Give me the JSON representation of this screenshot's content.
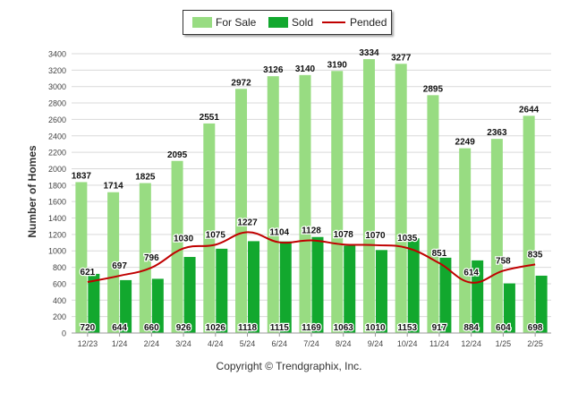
{
  "chart_data": {
    "type": "bar",
    "title": "",
    "ylabel": "Number of Homes",
    "xlabel": "",
    "ylim": [
      0,
      3400
    ],
    "ytick_step": 200,
    "grid": true,
    "legend_position": "top-center",
    "categories": [
      "12/23",
      "1/24",
      "2/24",
      "3/24",
      "4/24",
      "5/24",
      "6/24",
      "7/24",
      "8/24",
      "9/24",
      "10/24",
      "11/24",
      "12/24",
      "1/25",
      "2/25"
    ],
    "series": [
      {
        "name": "For Sale",
        "kind": "bar",
        "color": "#98dc82",
        "values": [
          1837,
          1714,
          1825,
          2095,
          2551,
          2972,
          3126,
          3140,
          3190,
          3334,
          3277,
          2895,
          2249,
          2363,
          2644
        ]
      },
      {
        "name": "Sold",
        "kind": "bar",
        "color": "#12a82e",
        "values": [
          720,
          644,
          660,
          926,
          1026,
          1118,
          1115,
          1169,
          1063,
          1010,
          1153,
          917,
          884,
          604,
          698
        ]
      },
      {
        "name": "Pended",
        "kind": "line",
        "color": "#c00000",
        "values": [
          621,
          697,
          796,
          1030,
          1075,
          1227,
          1104,
          1128,
          1078,
          1070,
          1035,
          851,
          614,
          758,
          835
        ]
      }
    ]
  },
  "footer": {
    "copyright": "Copyright © Trendgraphix, Inc."
  }
}
